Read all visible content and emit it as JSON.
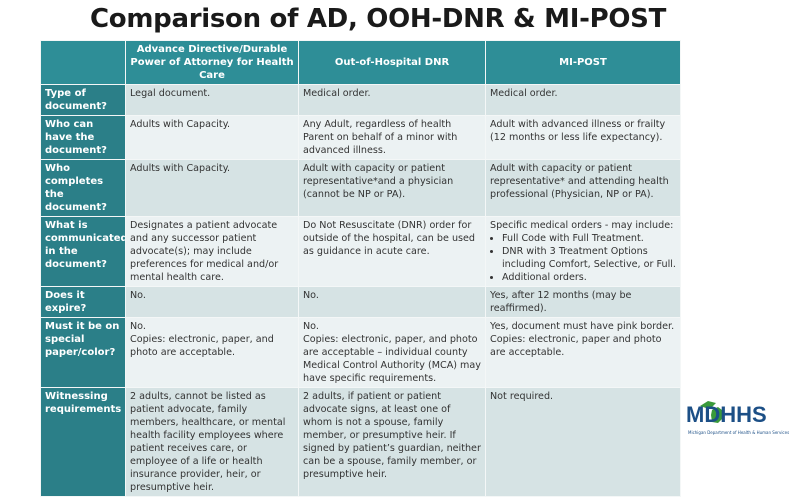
{
  "title": "Comparison of AD, OOH-DNR & MI-POST",
  "columns": [
    "",
    "Advance Directive/Durable Power of Attorney for Health Care",
    "Out-of-Hospital DNR",
    "MI-POST"
  ],
  "rows": [
    {
      "label": "Type of document?",
      "ad": "Legal document.",
      "dnr": "Medical order.",
      "post": "Medical order."
    },
    {
      "label": "Who can have the document?",
      "ad": "Adults with Capacity.",
      "dnr": "Any Adult, regardless of health Parent on behalf of a minor with advanced illness.",
      "post": "Adult with advanced illness or frailty (12 months or less life expectancy)."
    },
    {
      "label": "Who completes the document?",
      "ad": "Adults with Capacity.",
      "dnr": "Adult with capacity or patient representative*and a physician (cannot be NP or PA).",
      "post": "Adult with capacity or patient representative* and attending health professional (Physician, NP or PA)."
    },
    {
      "label": "What is communicated in the document?",
      "ad": "Designates a patient advocate and any successor patient advocate(s); may include preferences for medical and/or mental health care.",
      "dnr": "Do Not Resuscitate (DNR) order for outside of the hospital, can be used as guidance in acute care.",
      "post": "Specific medical orders - may include:",
      "post_list": [
        "Full Code with Full Treatment.",
        "DNR with 3 Treatment Options including Comfort, Selective, or Full.",
        "Additional orders."
      ]
    },
    {
      "label": "Does it expire?",
      "ad": "No.",
      "dnr": "No.",
      "post": "Yes, after 12 months (may be reaffirmed)."
    },
    {
      "label": "Must it be on special paper/color?",
      "ad": "No.",
      "ad2": "Copies: electronic, paper, and photo are acceptable.",
      "dnr": "No.",
      "dnr2": "Copies: electronic, paper, and  photo are acceptable – individual county Medical Control Authority (MCA) may have specific requirements.",
      "post": "Yes, document must have pink border. Copies: electronic, paper and photo are acceptable."
    },
    {
      "label": "Witnessing requirements",
      "ad": "2 adults, cannot be listed as patient advocate, family members, healthcare, or mental health facility employees where patient receives care, or employee of a life or health insurance provider, heir, or presumptive heir.",
      "dnr": "2 adults, if patient or patient advocate signs, at least one of whom is not a spouse, family member, or presumptive heir. If signed by patient’s guardian,  neither can be a spouse, family member, or presumptive heir.",
      "post": "Not required."
    }
  ],
  "logo": {
    "text": "MDHHS",
    "subtitle": "Michigan Department of Health & Human Services"
  },
  "colors": {
    "header": "#2e8e97",
    "label": "#2b7f88",
    "row_dark": "#d6e3e4",
    "row_light": "#ecf2f3",
    "logo_blue": "#1c4f86",
    "logo_green": "#3a9a3a"
  }
}
